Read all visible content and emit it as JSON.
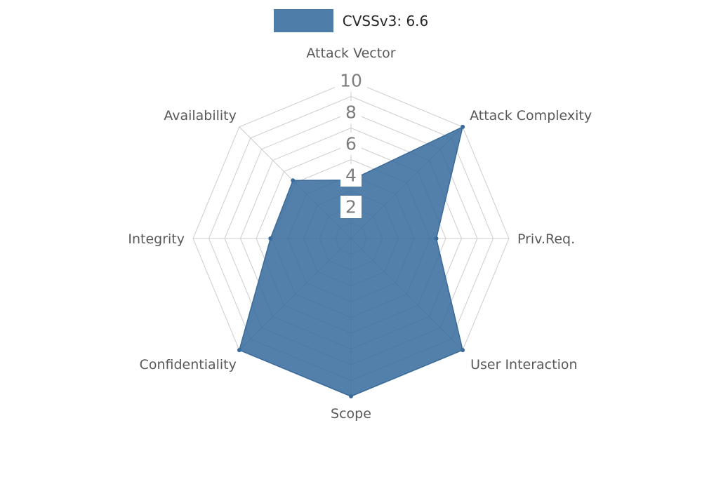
{
  "chart_data": {
    "type": "radar",
    "title": "CVSSv3: 6.6",
    "legend": {
      "label": "CVSSv3: 6.6"
    },
    "categories": [
      "Attack Vector",
      "Attack Complexity",
      "Priv.Req.",
      "User Interaction",
      "Scope",
      "Confidentiality",
      "Integrity",
      "Availability"
    ],
    "series": [
      {
        "name": "CVSSv3: 6.6",
        "values": [
          3.7,
          10,
          5.4,
          10,
          10,
          10,
          5.1,
          5.2
        ]
      }
    ],
    "axis": {
      "max": 10,
      "ticks": [
        2,
        4,
        6,
        8,
        10
      ]
    },
    "grid": true,
    "legend_position": "top-center",
    "colors": {
      "series_fill": "#35699c",
      "series_stroke": "#3a6b9b",
      "legend_swatch": "#4f7daa",
      "grid": "#cdcdcd",
      "axis_label": "#595959",
      "tick_label": "#7d7d7d",
      "tick_box": "#ffffff"
    }
  }
}
